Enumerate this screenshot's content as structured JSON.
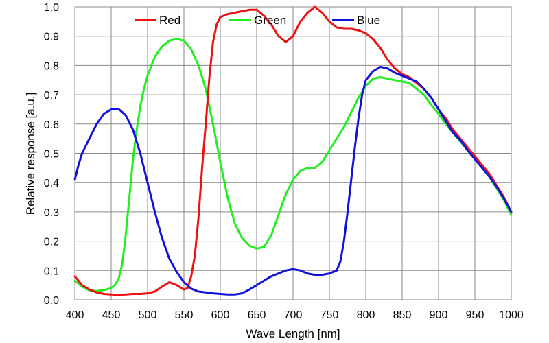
{
  "chart_data": {
    "type": "line",
    "title": "",
    "xlabel": "Wave Length [nm]",
    "ylabel": "Relative response [a.u.]",
    "xlim": [
      400,
      1000
    ],
    "ylim": [
      0,
      1
    ],
    "grid": true,
    "legend_position": "top-center",
    "x_ticks": [
      400,
      450,
      500,
      550,
      600,
      650,
      700,
      750,
      800,
      850,
      900,
      950,
      1000
    ],
    "y_ticks": [
      0,
      0.1,
      0.2,
      0.3,
      0.4,
      0.5,
      0.6,
      0.7,
      0.8,
      0.9,
      1.0
    ],
    "x_tick_labels": [
      "400",
      "450",
      "500",
      "550",
      "600",
      "650",
      "700",
      "750",
      "800",
      "850",
      "900",
      "950",
      "1000"
    ],
    "y_tick_labels": [
      "0.0",
      "0.1",
      "0.2",
      "0.3",
      "0.4",
      "0.5",
      "0.6",
      "0.7",
      "0.8",
      "0.9",
      "1.0"
    ],
    "series": [
      {
        "name": "Red",
        "color": "#ee1111",
        "points": [
          [
            400,
            0.08
          ],
          [
            410,
            0.05
          ],
          [
            420,
            0.035
          ],
          [
            430,
            0.025
          ],
          [
            440,
            0.02
          ],
          [
            450,
            0.018
          ],
          [
            460,
            0.017
          ],
          [
            470,
            0.018
          ],
          [
            480,
            0.02
          ],
          [
            490,
            0.02
          ],
          [
            500,
            0.022
          ],
          [
            510,
            0.028
          ],
          [
            520,
            0.045
          ],
          [
            530,
            0.06
          ],
          [
            540,
            0.05
          ],
          [
            550,
            0.035
          ],
          [
            555,
            0.04
          ],
          [
            560,
            0.08
          ],
          [
            565,
            0.15
          ],
          [
            570,
            0.28
          ],
          [
            575,
            0.45
          ],
          [
            580,
            0.6
          ],
          [
            585,
            0.76
          ],
          [
            590,
            0.88
          ],
          [
            595,
            0.94
          ],
          [
            600,
            0.965
          ],
          [
            610,
            0.975
          ],
          [
            620,
            0.98
          ],
          [
            630,
            0.985
          ],
          [
            640,
            0.99
          ],
          [
            650,
            0.99
          ],
          [
            660,
            0.97
          ],
          [
            670,
            0.94
          ],
          [
            680,
            0.9
          ],
          [
            690,
            0.88
          ],
          [
            700,
            0.9
          ],
          [
            710,
            0.95
          ],
          [
            720,
            0.98
          ],
          [
            730,
            1.0
          ],
          [
            740,
            0.98
          ],
          [
            750,
            0.95
          ],
          [
            760,
            0.93
          ],
          [
            770,
            0.925
          ],
          [
            780,
            0.925
          ],
          [
            790,
            0.92
          ],
          [
            800,
            0.91
          ],
          [
            810,
            0.89
          ],
          [
            820,
            0.86
          ],
          [
            830,
            0.82
          ],
          [
            840,
            0.79
          ],
          [
            850,
            0.77
          ],
          [
            860,
            0.76
          ],
          [
            870,
            0.74
          ],
          [
            880,
            0.72
          ],
          [
            890,
            0.69
          ],
          [
            900,
            0.65
          ],
          [
            910,
            0.62
          ],
          [
            920,
            0.58
          ],
          [
            930,
            0.55
          ],
          [
            940,
            0.52
          ],
          [
            950,
            0.49
          ],
          [
            960,
            0.46
          ],
          [
            970,
            0.43
          ],
          [
            980,
            0.39
          ],
          [
            990,
            0.35
          ],
          [
            1000,
            0.3
          ]
        ]
      },
      {
        "name": "Green",
        "color": "#22ee22",
        "points": [
          [
            400,
            0.065
          ],
          [
            410,
            0.045
          ],
          [
            420,
            0.032
          ],
          [
            430,
            0.03
          ],
          [
            440,
            0.033
          ],
          [
            450,
            0.04
          ],
          [
            455,
            0.05
          ],
          [
            460,
            0.07
          ],
          [
            465,
            0.12
          ],
          [
            470,
            0.22
          ],
          [
            475,
            0.35
          ],
          [
            480,
            0.48
          ],
          [
            485,
            0.58
          ],
          [
            490,
            0.66
          ],
          [
            495,
            0.72
          ],
          [
            500,
            0.765
          ],
          [
            510,
            0.83
          ],
          [
            520,
            0.865
          ],
          [
            530,
            0.885
          ],
          [
            540,
            0.89
          ],
          [
            550,
            0.885
          ],
          [
            560,
            0.855
          ],
          [
            570,
            0.8
          ],
          [
            580,
            0.72
          ],
          [
            590,
            0.6
          ],
          [
            600,
            0.47
          ],
          [
            610,
            0.35
          ],
          [
            620,
            0.26
          ],
          [
            630,
            0.21
          ],
          [
            640,
            0.185
          ],
          [
            650,
            0.175
          ],
          [
            660,
            0.18
          ],
          [
            670,
            0.22
          ],
          [
            680,
            0.29
          ],
          [
            690,
            0.36
          ],
          [
            700,
            0.41
          ],
          [
            710,
            0.44
          ],
          [
            720,
            0.45
          ],
          [
            730,
            0.45
          ],
          [
            740,
            0.47
          ],
          [
            750,
            0.51
          ],
          [
            760,
            0.55
          ],
          [
            770,
            0.59
          ],
          [
            780,
            0.64
          ],
          [
            790,
            0.69
          ],
          [
            800,
            0.73
          ],
          [
            810,
            0.755
          ],
          [
            820,
            0.76
          ],
          [
            830,
            0.755
          ],
          [
            840,
            0.75
          ],
          [
            850,
            0.745
          ],
          [
            860,
            0.74
          ],
          [
            870,
            0.72
          ],
          [
            880,
            0.7
          ],
          [
            890,
            0.665
          ],
          [
            900,
            0.635
          ],
          [
            910,
            0.6
          ],
          [
            920,
            0.57
          ],
          [
            930,
            0.54
          ],
          [
            940,
            0.51
          ],
          [
            950,
            0.48
          ],
          [
            960,
            0.45
          ],
          [
            970,
            0.42
          ],
          [
            980,
            0.38
          ],
          [
            990,
            0.34
          ],
          [
            1000,
            0.29
          ]
        ]
      },
      {
        "name": "Blue",
        "color": "#1111dd",
        "points": [
          [
            400,
            0.41
          ],
          [
            405,
            0.46
          ],
          [
            410,
            0.5
          ],
          [
            420,
            0.55
          ],
          [
            430,
            0.6
          ],
          [
            440,
            0.635
          ],
          [
            450,
            0.65
          ],
          [
            460,
            0.652
          ],
          [
            470,
            0.63
          ],
          [
            480,
            0.58
          ],
          [
            490,
            0.5
          ],
          [
            500,
            0.4
          ],
          [
            510,
            0.3
          ],
          [
            520,
            0.21
          ],
          [
            530,
            0.14
          ],
          [
            540,
            0.095
          ],
          [
            550,
            0.06
          ],
          [
            560,
            0.038
          ],
          [
            570,
            0.028
          ],
          [
            580,
            0.025
          ],
          [
            590,
            0.022
          ],
          [
            600,
            0.02
          ],
          [
            610,
            0.018
          ],
          [
            620,
            0.018
          ],
          [
            630,
            0.022
          ],
          [
            640,
            0.035
          ],
          [
            650,
            0.05
          ],
          [
            660,
            0.065
          ],
          [
            670,
            0.08
          ],
          [
            680,
            0.09
          ],
          [
            690,
            0.1
          ],
          [
            700,
            0.105
          ],
          [
            710,
            0.1
          ],
          [
            720,
            0.09
          ],
          [
            730,
            0.085
          ],
          [
            740,
            0.085
          ],
          [
            750,
            0.09
          ],
          [
            760,
            0.1
          ],
          [
            765,
            0.13
          ],
          [
            770,
            0.2
          ],
          [
            775,
            0.3
          ],
          [
            780,
            0.41
          ],
          [
            785,
            0.52
          ],
          [
            790,
            0.62
          ],
          [
            795,
            0.7
          ],
          [
            800,
            0.75
          ],
          [
            810,
            0.78
          ],
          [
            820,
            0.795
          ],
          [
            830,
            0.79
          ],
          [
            840,
            0.775
          ],
          [
            850,
            0.765
          ],
          [
            860,
            0.755
          ],
          [
            870,
            0.745
          ],
          [
            880,
            0.72
          ],
          [
            890,
            0.69
          ],
          [
            900,
            0.65
          ],
          [
            910,
            0.61
          ],
          [
            920,
            0.57
          ],
          [
            930,
            0.545
          ],
          [
            940,
            0.51
          ],
          [
            950,
            0.48
          ],
          [
            960,
            0.45
          ],
          [
            970,
            0.42
          ],
          [
            980,
            0.385
          ],
          [
            990,
            0.345
          ],
          [
            1000,
            0.3
          ]
        ]
      }
    ]
  }
}
